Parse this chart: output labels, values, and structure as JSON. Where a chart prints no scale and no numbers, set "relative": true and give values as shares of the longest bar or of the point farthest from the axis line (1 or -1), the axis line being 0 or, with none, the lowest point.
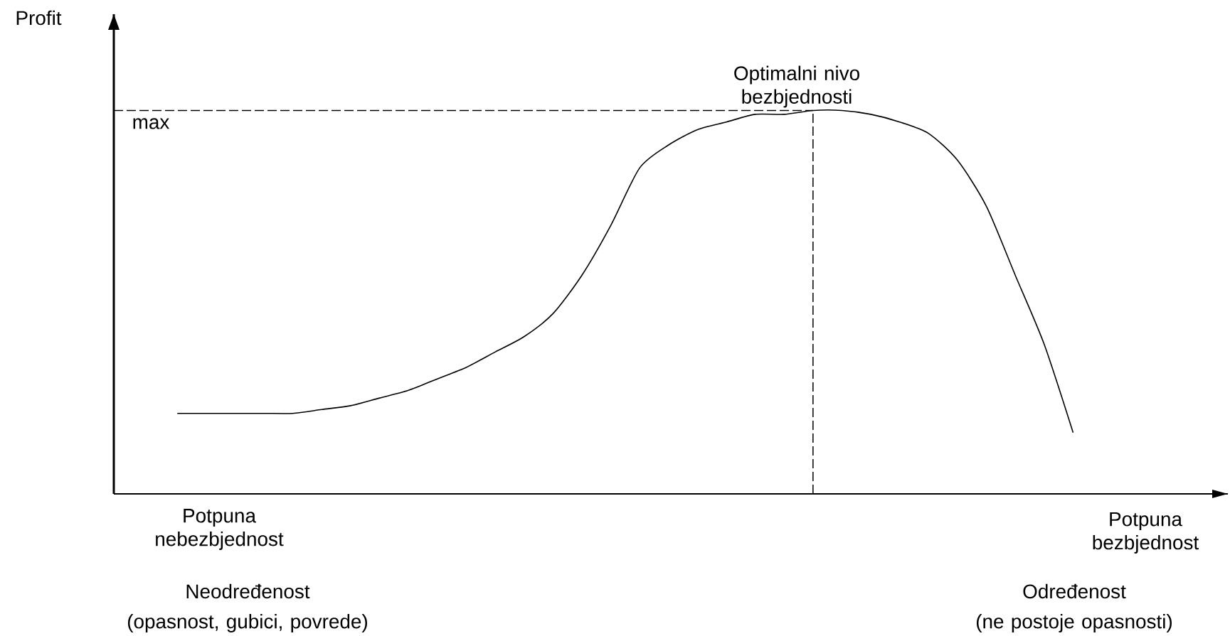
{
  "chart_data": {
    "type": "line",
    "relative": true,
    "color": "#000000",
    "categories": [
      null,
      null,
      null,
      null,
      null,
      null,
      null,
      null,
      null,
      null,
      null,
      null,
      null,
      null,
      null,
      null,
      null,
      null,
      null,
      null,
      null,
      null,
      null,
      null,
      null,
      null,
      null,
      null,
      null,
      null,
      null,
      null
    ],
    "values": [
      0.21,
      0.21,
      0.21,
      0.21,
      0.21,
      0.22,
      0.23,
      0.25,
      0.27,
      0.3,
      0.33,
      0.37,
      0.41,
      0.47,
      0.57,
      0.7,
      0.85,
      0.91,
      0.95,
      0.97,
      0.99,
      0.99,
      1,
      1,
      0.99,
      0.97,
      0.94,
      0.87,
      0.75,
      0.57,
      0.39,
      0.16
    ],
    "annotations": [
      "max",
      "Profit",
      "Optimalni nivo bezbjednosti",
      "Potpuna nebezbjednost",
      "Potpuna bezbjednost",
      "Neodređenost",
      "(opasnost, gubici, povrede)",
      "Određenost",
      "(ne postoje opasnosti)"
    ]
  }
}
